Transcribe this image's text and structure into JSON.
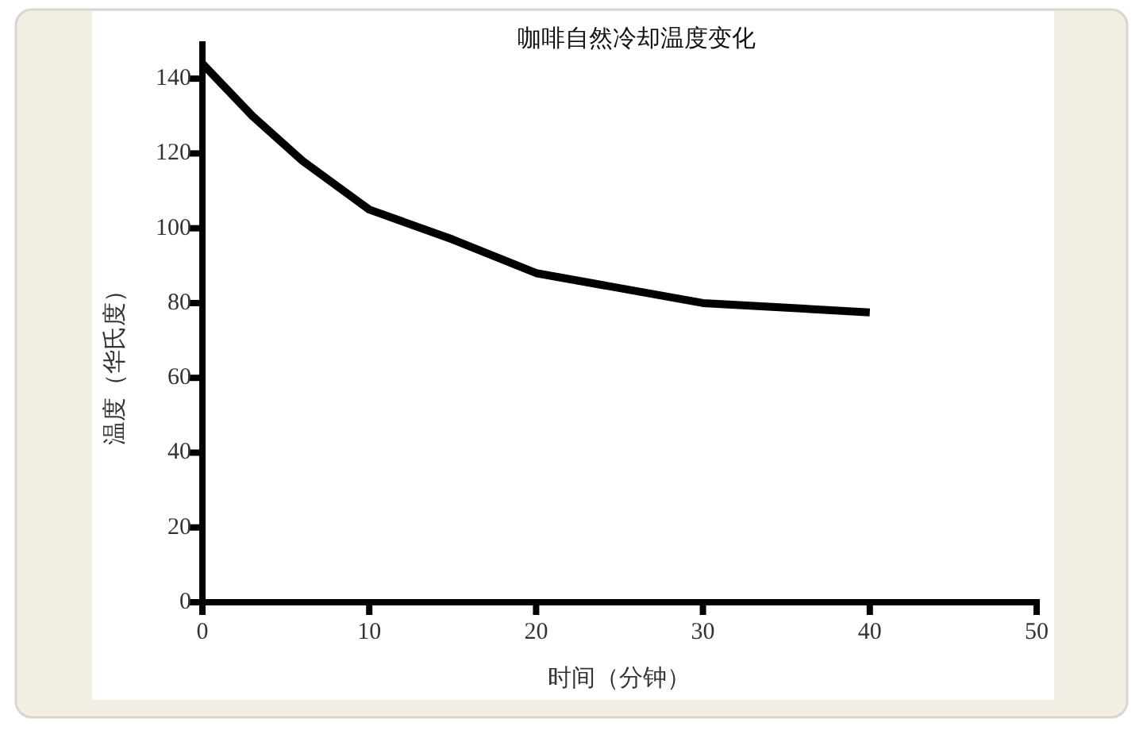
{
  "chart_data": {
    "type": "line",
    "title": "咖啡自然冷却温度变化",
    "xlabel": "时间（分钟）",
    "ylabel": "温度（华氏度）",
    "x": [
      0,
      3,
      6,
      10,
      15,
      20,
      30,
      40
    ],
    "values": [
      144,
      130,
      118,
      105,
      97,
      88,
      80,
      77.5
    ],
    "color": "#000000",
    "line_style": "solid",
    "xlim": [
      0,
      50
    ],
    "xticks": [
      0,
      10,
      20,
      30,
      40,
      50
    ],
    "ylim": [
      0,
      150
    ],
    "yticks": [
      0,
      20,
      40,
      60,
      80,
      100,
      120,
      140
    ]
  }
}
